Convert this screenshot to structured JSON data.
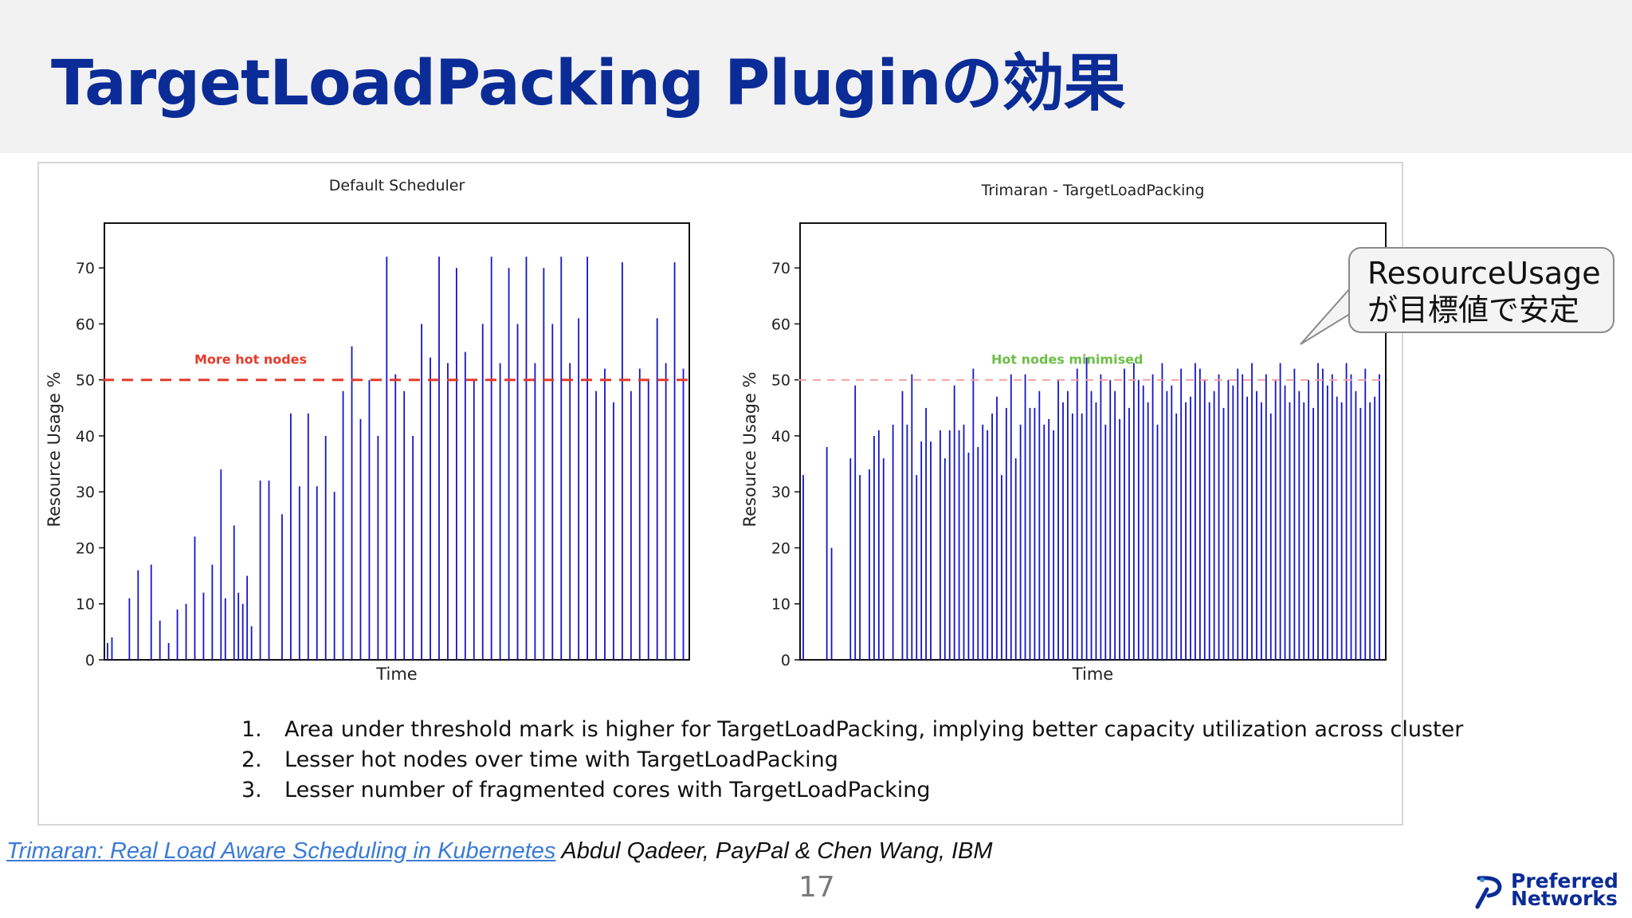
{
  "slide": {
    "title": "TargetLoadPacking Pluginの効果",
    "page_number": "17"
  },
  "callout": {
    "line1": "ResourceUsage",
    "line2": "が目標値で安定"
  },
  "findings": [
    {
      "number": "1.",
      "text": "Area under threshold mark is higher for TargetLoadPacking, implying better capacity utilization across cluster"
    },
    {
      "number": "2.",
      "text": "Lesser hot nodes over time with TargetLoadPacking"
    },
    {
      "number": "3.",
      "text": "Lesser number of fragmented cores with TargetLoadPacking"
    }
  ],
  "citation": {
    "link_text": "Trimaran: Real Load Aware Scheduling in Kubernetes",
    "authors": " Abdul Qadeer, PayPal & Chen Wang, IBM"
  },
  "brand": {
    "line1": "Preferred",
    "line2": "Networks"
  },
  "colors": {
    "title": "#0b2c96",
    "bar": "#1515c8",
    "threshold_default": "#e53a2a",
    "threshold_trimaran": "#f4a0a0",
    "hot_label_default": "#e53a2a",
    "hot_label_trimaran": "#6cbe45"
  },
  "chart_data": [
    {
      "type": "bar",
      "title": "Default Scheduler",
      "xlabel": "Time",
      "ylabel": "Resource Usage %",
      "ylim": [
        0,
        78
      ],
      "yticks": [
        0,
        10,
        20,
        30,
        40,
        50,
        60,
        70
      ],
      "threshold": {
        "value": 50,
        "label": "More hot nodes",
        "style": "dashed"
      },
      "grid": false,
      "values": [
        3,
        4,
        0,
        0,
        0,
        11,
        0,
        16,
        0,
        0,
        17,
        0,
        7,
        0,
        3,
        0,
        9,
        0,
        10,
        0,
        22,
        0,
        12,
        0,
        17,
        0,
        34,
        11,
        0,
        24,
        12,
        10,
        15,
        6,
        0,
        32,
        0,
        32,
        0,
        0,
        26,
        0,
        44,
        0,
        31,
        0,
        44,
        0,
        31,
        0,
        40,
        0,
        30,
        0,
        48,
        0,
        56,
        0,
        43,
        0,
        50,
        0,
        40,
        0,
        72,
        0,
        51,
        0,
        48,
        0,
        40,
        0,
        60,
        0,
        54,
        0,
        72,
        0,
        53,
        0,
        70,
        0,
        55,
        0,
        50,
        0,
        60,
        0,
        72,
        0,
        53,
        0,
        70,
        0,
        60,
        0,
        72,
        0,
        53,
        0,
        70,
        0,
        60,
        0,
        72,
        0,
        53,
        0,
        61,
        0,
        72,
        0,
        48,
        0,
        52,
        0,
        46,
        0,
        71,
        0,
        48,
        0,
        52,
        0,
        50,
        0,
        61,
        0,
        53,
        0,
        71,
        0,
        52
      ]
    },
    {
      "type": "bar",
      "title": "Trimaran - TargetLoadPacking",
      "xlabel": "Time",
      "ylabel": "Resource Usage %",
      "ylim": [
        0,
        78
      ],
      "yticks": [
        0,
        10,
        20,
        30,
        40,
        50,
        60,
        70
      ],
      "threshold": {
        "value": 50,
        "label": "Hot nodes minimised",
        "style": "dashed"
      },
      "grid": false,
      "values": [
        33,
        0,
        0,
        0,
        0,
        38,
        20,
        0,
        0,
        0,
        36,
        49,
        33,
        0,
        34,
        40,
        41,
        36,
        0,
        42,
        0,
        48,
        42,
        51,
        33,
        39,
        45,
        39,
        0,
        41,
        36,
        41,
        49,
        41,
        42,
        37,
        52,
        38,
        42,
        41,
        44,
        47,
        33,
        45,
        51,
        36,
        42,
        51,
        45,
        45,
        48,
        42,
        43,
        41,
        50,
        46,
        48,
        44,
        52,
        44,
        54,
        48,
        46,
        51,
        42,
        50,
        48,
        43,
        52,
        45,
        53,
        50,
        49,
        46,
        51,
        42,
        53,
        48,
        49,
        44,
        52,
        46,
        47,
        53,
        52,
        50,
        46,
        48,
        51,
        45,
        50,
        49,
        52,
        51,
        47,
        53,
        48,
        46,
        51,
        44,
        50,
        53,
        49,
        46,
        52,
        48,
        46,
        50,
        45,
        53,
        52,
        49,
        51,
        47,
        46,
        53,
        51,
        48,
        45,
        52,
        46,
        47,
        51
      ]
    }
  ]
}
